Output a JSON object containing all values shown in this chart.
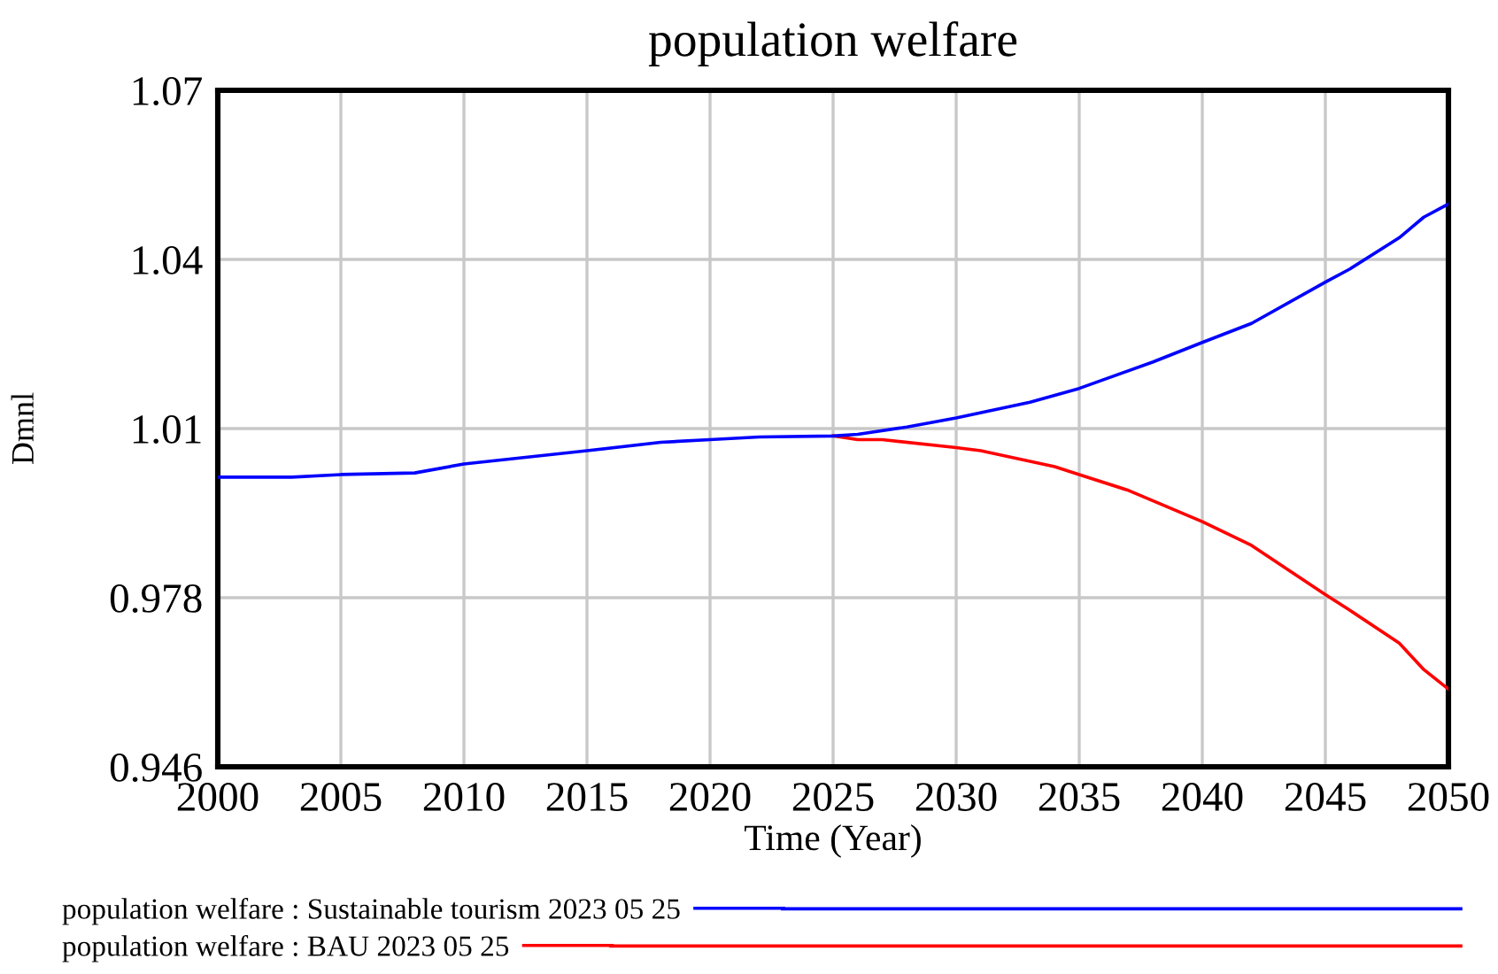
{
  "chart_data": {
    "type": "line",
    "title": "population welfare",
    "xlabel": "Time (Year)",
    "ylabel": "Dmnl",
    "xlim": [
      2000,
      2050
    ],
    "xticks": [
      2000,
      2005,
      2010,
      2015,
      2020,
      2025,
      2030,
      2035,
      2040,
      2045,
      2050
    ],
    "ylim": [
      0.946,
      1.074
    ],
    "yticks": [
      0.946,
      0.978,
      {
        "value": 1.01,
        "label": "1.01"
      },
      {
        "value": 1.042,
        "label": "1.04"
      },
      {
        "value": 1.074,
        "label": "1.07"
      }
    ],
    "grid": true,
    "legend": "bottom",
    "line_style": "solid",
    "series": [
      {
        "name": "population welfare : Sustainable tourism 2023 05 25",
        "color": "#0000ff",
        "x": [
          2000,
          2003,
          2005,
          2008,
          2010,
          2015,
          2018,
          2020,
          2022,
          2025,
          2026,
          2028,
          2030,
          2033,
          2035,
          2038,
          2040,
          2042,
          2045,
          2046,
          2048,
          2049,
          2050
        ],
        "values": [
          1.0008,
          1.0008,
          1.0013,
          1.0016,
          1.0033,
          1.0058,
          1.0074,
          1.0079,
          1.0084,
          1.0086,
          1.0089,
          1.0103,
          1.012,
          1.015,
          1.0176,
          1.0226,
          1.0263,
          1.0299,
          1.0377,
          1.0402,
          1.0461,
          1.05,
          1.0525
        ]
      },
      {
        "name": "population welfare : BAU 2023 05 25",
        "color": "#ff0000",
        "x": [
          2025,
          2026,
          2027,
          2030,
          2031,
          2034,
          2035,
          2037,
          2040,
          2042,
          2045,
          2046,
          2048,
          2049,
          2050
        ],
        "values": [
          1.0086,
          1.0079,
          1.0079,
          1.0064,
          1.0058,
          1.0028,
          1.0013,
          0.9983,
          0.9924,
          0.9879,
          0.9786,
          0.9756,
          0.9694,
          0.9644,
          0.9607
        ]
      }
    ]
  }
}
